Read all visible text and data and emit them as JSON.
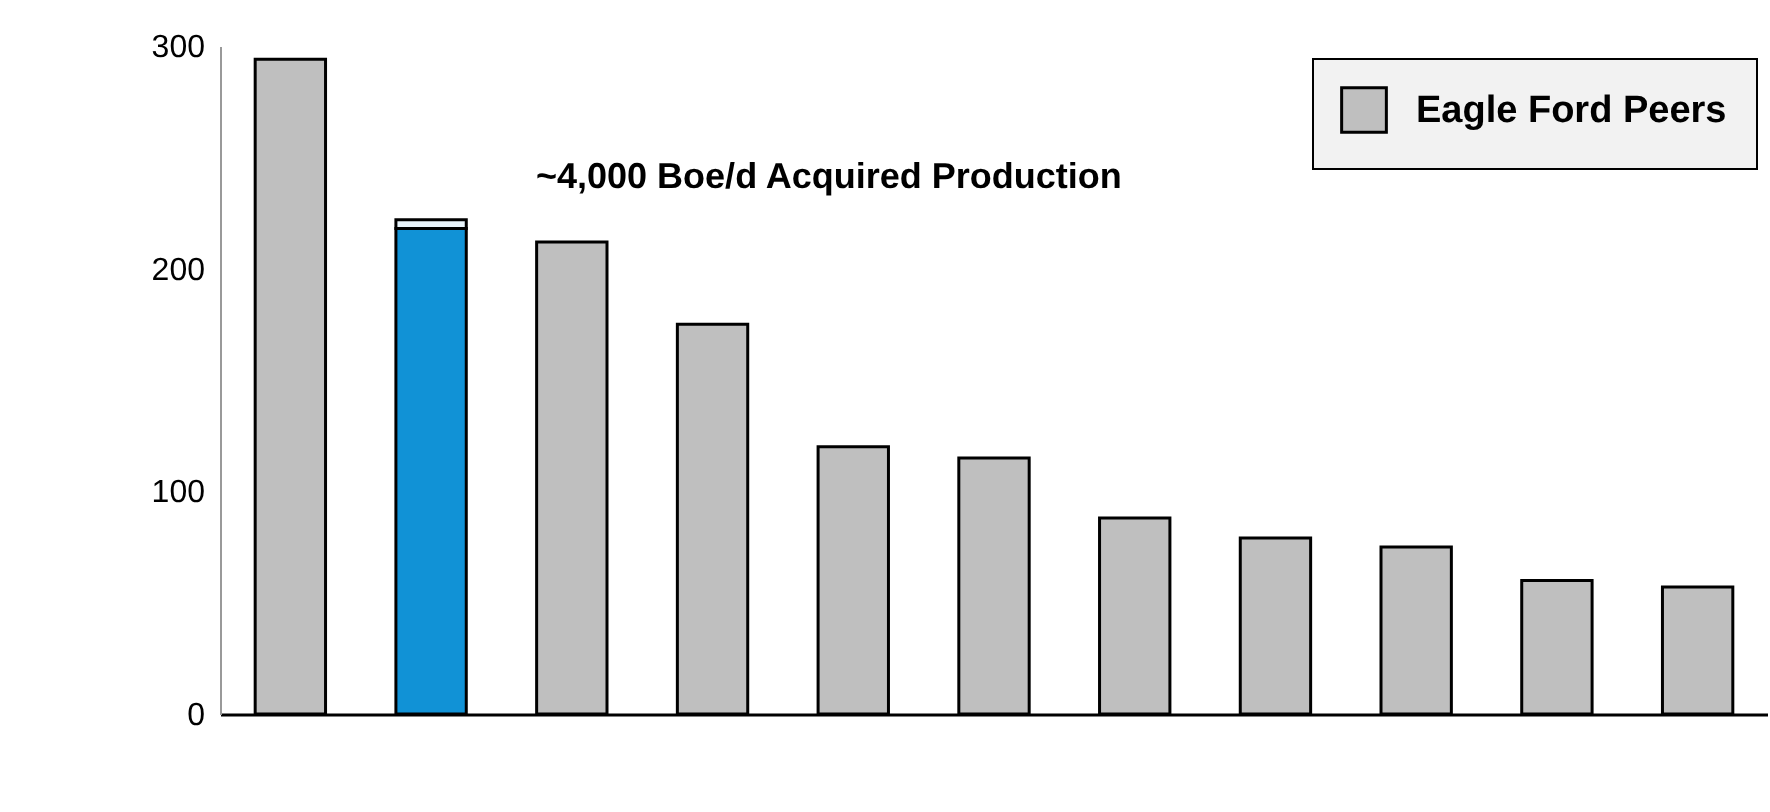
{
  "chart_data": {
    "type": "bar",
    "stacked": true,
    "categories": [
      null,
      null,
      null,
      null,
      null,
      null,
      null,
      null,
      null,
      null,
      null
    ],
    "series": [
      {
        "name": "Eagle Ford Peers",
        "color": "#bfbfbf",
        "colors": [
          "#bfbfbf",
          "#1192d6",
          "#bfbfbf",
          "#bfbfbf",
          "#bfbfbf",
          "#bfbfbf",
          "#bfbfbf",
          "#bfbfbf",
          "#bfbfbf",
          "#bfbfbf",
          "#bfbfbf"
        ],
        "values": [
          294,
          218,
          212,
          175,
          120,
          115,
          88,
          79,
          75,
          60,
          57
        ]
      },
      {
        "color": "#e8f4fb",
        "values": [
          null,
          4,
          null,
          null,
          null,
          null,
          null,
          null,
          null,
          null,
          null
        ]
      }
    ],
    "ylim": [
      0,
      300
    ],
    "yticks": [
      0,
      100,
      200,
      300
    ],
    "tick_labels": "y",
    "grid": false,
    "legend": "top right",
    "annotations": [
      "~4,000 Boe/d Acquired Production"
    ]
  }
}
